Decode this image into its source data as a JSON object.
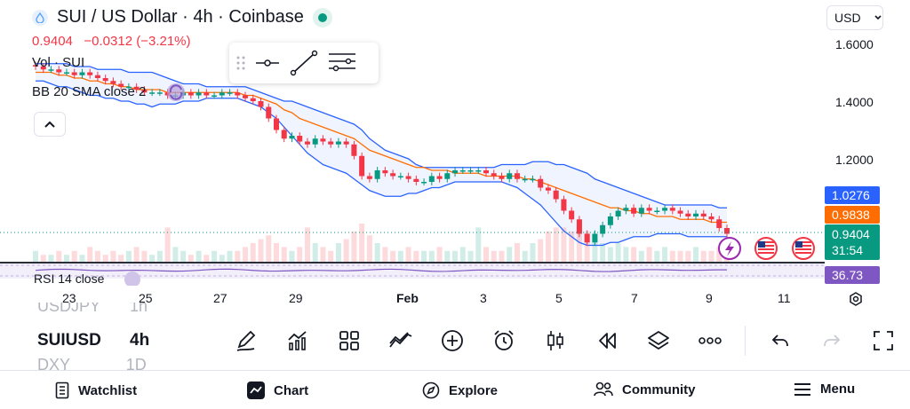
{
  "header": {
    "title": "SUI / US Dollar · 4h · Coinbase",
    "price": "0.9404",
    "change": "−0.0312",
    "change_pct": "(−3.21%)"
  },
  "legend": {
    "volume": "Vol · SUI",
    "bollinger": "BB 20 SMA close 2",
    "rsi": "RSI 14 close"
  },
  "currency": {
    "selected": "USD"
  },
  "price_axis": {
    "ticks": [
      "1.6000",
      "1.4000",
      "1.2000"
    ]
  },
  "price_badges": {
    "upper": "1.0276",
    "middle": "0.9838",
    "last": "0.9404",
    "countdown": "31:54",
    "rsi": "36.73"
  },
  "time_axis": {
    "ticks": [
      "23",
      "25",
      "27",
      "29",
      "Feb",
      "3",
      "5",
      "7",
      "9",
      "11"
    ]
  },
  "symbols": {
    "above": {
      "symbol": "USDJPY",
      "tf": "1h"
    },
    "current": {
      "symbol": "SUIUSD",
      "tf": "4h"
    },
    "below": {
      "symbol": "DXY",
      "tf": "1D"
    }
  },
  "nav": {
    "watchlist": "Watchlist",
    "chart": "Chart",
    "explore": "Explore",
    "community": "Community",
    "menu": "Menu"
  },
  "colors": {
    "up": "#089981",
    "down": "#f23645",
    "bb_band": "#2962ff",
    "bb_basis": "#ff6d00",
    "rsi": "#7e57c2"
  },
  "chart_data": {
    "type": "candlestick",
    "title": "SUI / US Dollar · 4h · Coinbase",
    "ylim": [
      0.9,
      1.65
    ],
    "y_ticks": [
      1.6,
      1.4,
      1.2
    ],
    "x_ticks": [
      "23",
      "25",
      "27",
      "29",
      "Feb",
      "3",
      "5",
      "7",
      "9",
      "11"
    ],
    "last_price": 0.9404,
    "bb_upper_last": 1.0276,
    "bb_basis_last": 0.9838,
    "rsi_last": 36.73,
    "close": [
      1.52,
      1.51,
      1.51,
      1.5,
      1.5,
      1.49,
      1.5,
      1.49,
      1.48,
      1.47,
      1.46,
      1.45,
      1.45,
      1.44,
      1.43,
      1.43,
      1.43,
      1.42,
      1.42,
      1.43,
      1.42,
      1.43,
      1.42,
      1.42,
      1.43,
      1.43,
      1.42,
      1.41,
      1.4,
      1.38,
      1.34,
      1.3,
      1.27,
      1.28,
      1.26,
      1.25,
      1.27,
      1.26,
      1.25,
      1.26,
      1.25,
      1.21,
      1.14,
      1.13,
      1.16,
      1.15,
      1.14,
      1.14,
      1.13,
      1.12,
      1.12,
      1.14,
      1.13,
      1.15,
      1.16,
      1.16,
      1.16,
      1.16,
      1.15,
      1.14,
      1.13,
      1.15,
      1.13,
      1.13,
      1.13,
      1.1,
      1.09,
      1.06,
      1.02,
      0.99,
      0.94,
      0.91,
      0.94,
      0.97,
      1.0,
      1.02,
      1.03,
      1.01,
      1.03,
      1.02,
      1.02,
      1.03,
      1.02,
      1.01,
      1.0,
      1.01,
      1.0,
      0.99,
      0.96,
      0.94
    ],
    "bb_upper": [
      1.53,
      1.53,
      1.53,
      1.53,
      1.53,
      1.52,
      1.52,
      1.52,
      1.51,
      1.51,
      1.51,
      1.51,
      1.5,
      1.5,
      1.5,
      1.5,
      1.49,
      1.48,
      1.47,
      1.46,
      1.46,
      1.46,
      1.45,
      1.45,
      1.45,
      1.45,
      1.45,
      1.45,
      1.44,
      1.43,
      1.42,
      1.41,
      1.4,
      1.4,
      1.39,
      1.38,
      1.37,
      1.36,
      1.35,
      1.34,
      1.33,
      1.32,
      1.3,
      1.27,
      1.25,
      1.23,
      1.22,
      1.21,
      1.2,
      1.18,
      1.17,
      1.17,
      1.17,
      1.17,
      1.17,
      1.17,
      1.17,
      1.17,
      1.17,
      1.17,
      1.18,
      1.18,
      1.18,
      1.18,
      1.19,
      1.19,
      1.19,
      1.18,
      1.18,
      1.17,
      1.16,
      1.15,
      1.13,
      1.12,
      1.11,
      1.1,
      1.09,
      1.08,
      1.07,
      1.06,
      1.05,
      1.04,
      1.04,
      1.04,
      1.04,
      1.04,
      1.04,
      1.04,
      1.03,
      1.03
    ],
    "bb_basis": [
      1.5,
      1.5,
      1.5,
      1.49,
      1.49,
      1.48,
      1.48,
      1.47,
      1.47,
      1.46,
      1.46,
      1.45,
      1.45,
      1.44,
      1.44,
      1.44,
      1.44,
      1.43,
      1.43,
      1.43,
      1.43,
      1.43,
      1.43,
      1.43,
      1.43,
      1.43,
      1.43,
      1.42,
      1.42,
      1.41,
      1.4,
      1.39,
      1.37,
      1.36,
      1.34,
      1.33,
      1.32,
      1.31,
      1.3,
      1.29,
      1.28,
      1.27,
      1.25,
      1.23,
      1.22,
      1.21,
      1.2,
      1.19,
      1.18,
      1.17,
      1.17,
      1.16,
      1.16,
      1.16,
      1.15,
      1.15,
      1.15,
      1.15,
      1.14,
      1.14,
      1.14,
      1.14,
      1.14,
      1.13,
      1.13,
      1.12,
      1.11,
      1.1,
      1.09,
      1.08,
      1.07,
      1.06,
      1.05,
      1.04,
      1.03,
      1.03,
      1.02,
      1.02,
      1.01,
      1.01,
      1.0,
      1.0,
      1.0,
      0.99,
      0.99,
      0.99,
      0.99,
      0.98,
      0.98,
      0.98
    ],
    "bb_lower": [
      1.47,
      1.47,
      1.46,
      1.45,
      1.45,
      1.44,
      1.43,
      1.42,
      1.42,
      1.41,
      1.41,
      1.4,
      1.4,
      1.39,
      1.39,
      1.38,
      1.39,
      1.39,
      1.39,
      1.4,
      1.4,
      1.4,
      1.41,
      1.41,
      1.41,
      1.41,
      1.41,
      1.4,
      1.39,
      1.38,
      1.36,
      1.34,
      1.31,
      1.28,
      1.25,
      1.22,
      1.2,
      1.18,
      1.17,
      1.16,
      1.15,
      1.13,
      1.11,
      1.09,
      1.08,
      1.07,
      1.07,
      1.07,
      1.08,
      1.08,
      1.09,
      1.1,
      1.1,
      1.11,
      1.12,
      1.12,
      1.12,
      1.12,
      1.12,
      1.12,
      1.12,
      1.11,
      1.1,
      1.08,
      1.06,
      1.04,
      1.01,
      0.98,
      0.95,
      0.93,
      0.91,
      0.9,
      0.9,
      0.9,
      0.91,
      0.91,
      0.92,
      0.93,
      0.93,
      0.93,
      0.94,
      0.94,
      0.94,
      0.94,
      0.93,
      0.93,
      0.93,
      0.93,
      0.93,
      0.93
    ],
    "volume": [
      0.3,
      0.2,
      0.2,
      0.3,
      0.2,
      0.3,
      0.2,
      0.4,
      0.3,
      0.2,
      0.3,
      0.2,
      0.3,
      0.4,
      0.3,
      0.2,
      0.3,
      0.9,
      0.4,
      0.3,
      0.2,
      0.3,
      0.2,
      0.3,
      0.2,
      0.3,
      0.3,
      0.4,
      0.5,
      0.6,
      0.7,
      0.5,
      0.4,
      0.3,
      0.4,
      0.9,
      0.5,
      0.4,
      0.3,
      0.5,
      0.6,
      0.8,
      1.0,
      0.7,
      0.5,
      0.4,
      0.3,
      0.3,
      0.4,
      0.3,
      0.3,
      0.3,
      0.4,
      0.3,
      0.3,
      0.4,
      0.3,
      0.9,
      0.4,
      0.3,
      0.3,
      0.4,
      0.5,
      0.3,
      0.5,
      0.6,
      0.8,
      0.9,
      0.9,
      0.8,
      0.9,
      0.8,
      0.6,
      0.5,
      0.4,
      0.5,
      0.4,
      0.4,
      0.3,
      0.4,
      0.3,
      0.4,
      0.3,
      0.3,
      0.3,
      0.4,
      0.3,
      0.3,
      0.4,
      0.5
    ]
  }
}
